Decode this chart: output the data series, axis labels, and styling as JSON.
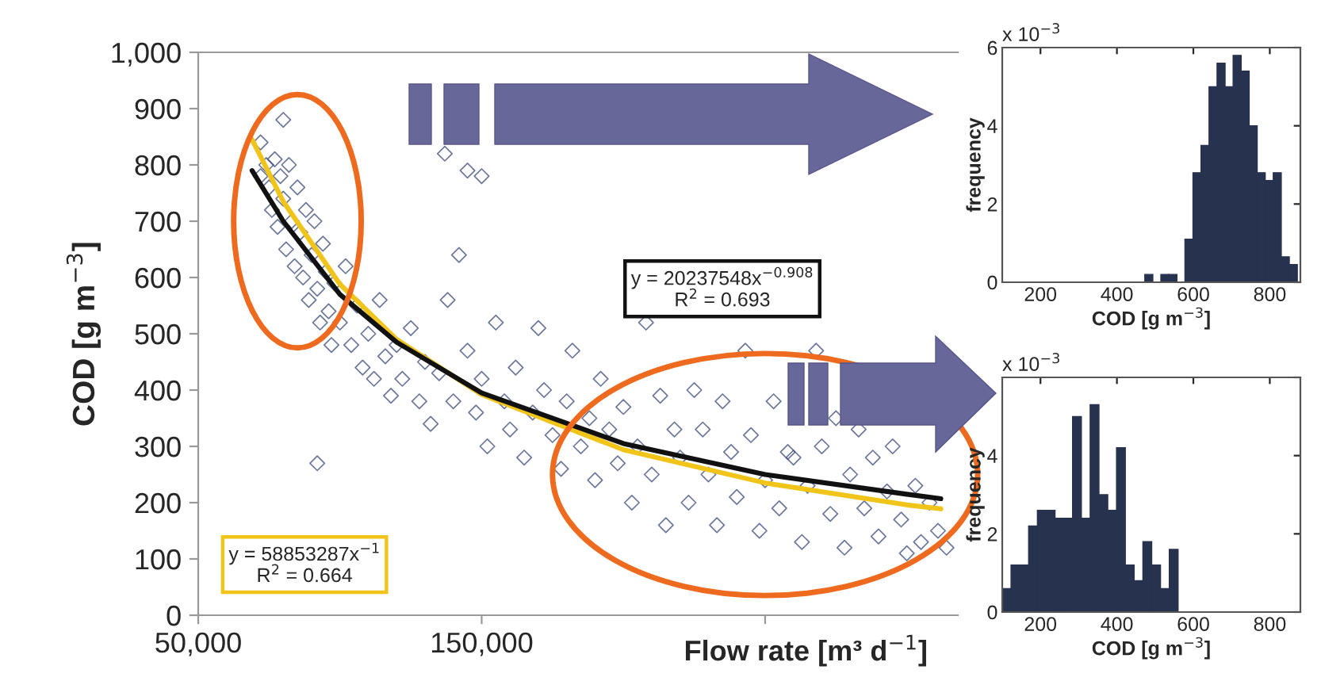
{
  "chart_data": [
    {
      "type": "scatter",
      "xlabel": "Flow rate [m³ d$^{−1}$]",
      "ylabel": "COD [g m$^{−3}$]",
      "xlim": [
        50000,
        318000
      ],
      "xticks": [
        {
          "value": 50000,
          "label": "50,000"
        },
        {
          "value": 150000,
          "label": "150,000"
        },
        {
          "value": 250000,
          "label": null
        }
      ],
      "ylim": [
        0,
        1000
      ],
      "yticks": [
        0,
        100,
        200,
        300,
        400,
        500,
        600,
        700,
        800,
        900,
        {
          "value": 1000,
          "label": "1,000"
        }
      ],
      "grid": false,
      "legend": false,
      "annotations": [
        "y = 58853287x$^{−1}$\nR$^{2}$ = 0.664",
        "y = 20237548x$^{−0.908}$\nR$^{2}$ = 0.693"
      ],
      "series": [
        {
          "type": "scatter",
          "color": "#3a4a78",
          "marker": "diamond",
          "x": [
            72000,
            74000,
            75000,
            76000,
            77000,
            78000,
            79000,
            80000,
            81000,
            82000,
            83000,
            84000,
            85000,
            86000,
            87000,
            88000,
            89000,
            90000,
            91000,
            92000,
            93000,
            94000,
            95000,
            96000,
            97000,
            98000,
            100000,
            102000,
            104000,
            106000,
            108000,
            110000,
            112000,
            114000,
            116000,
            118000,
            120000,
            122000,
            125000,
            128000,
            130000,
            132000,
            135000,
            138000,
            140000,
            142000,
            145000,
            148000,
            150000,
            152000,
            155000,
            158000,
            160000,
            162000,
            165000,
            168000,
            170000,
            172000,
            175000,
            178000,
            180000,
            182000,
            185000,
            188000,
            190000,
            192000,
            195000,
            198000,
            200000,
            203000,
            205000,
            208000,
            210000,
            213000,
            215000,
            218000,
            220000,
            223000,
            225000,
            228000,
            230000,
            233000,
            235000,
            238000,
            240000,
            243000,
            245000,
            248000,
            250000,
            253000,
            255000,
            258000,
            260000,
            263000,
            265000,
            268000,
            270000,
            273000,
            275000,
            278000,
            280000,
            283000,
            285000,
            288000,
            290000,
            293000,
            295000,
            298000,
            300000,
            303000,
            305000,
            308000,
            311000,
            314000,
            92000,
            72000,
            80000,
            137000,
            145000,
            150000
          ],
          "values": [
            780,
            800,
            760,
            720,
            810,
            690,
            780,
            740,
            650,
            800,
            700,
            620,
            760,
            680,
            600,
            720,
            560,
            640,
            700,
            580,
            520,
            660,
            610,
            540,
            480,
            590,
            520,
            620,
            480,
            550,
            440,
            500,
            420,
            560,
            460,
            390,
            480,
            420,
            510,
            380,
            450,
            340,
            430,
            560,
            380,
            640,
            470,
            360,
            420,
            300,
            520,
            380,
            330,
            440,
            280,
            360,
            510,
            400,
            320,
            260,
            380,
            470,
            300,
            350,
            240,
            420,
            330,
            270,
            370,
            200,
            300,
            520,
            250,
            390,
            160,
            330,
            280,
            200,
            400,
            330,
            250,
            160,
            380,
            290,
            210,
            470,
            320,
            150,
            240,
            380,
            190,
            290,
            280,
            130,
            230,
            470,
            300,
            180,
            350,
            120,
            250,
            330,
            190,
            280,
            140,
            220,
            300,
            170,
            110,
            230,
            130,
            200,
            150,
            120,
            270,
            840,
            880,
            820,
            790,
            780
          ]
        },
        {
          "type": "line",
          "color": "#f0c419",
          "x": [
            69000,
            80000,
            100000,
            120000,
            150000,
            200000,
            250000,
            300000,
            312000
          ],
          "values": [
            845,
            735,
            588,
            490,
            392,
            294,
            235,
            196,
            189
          ]
        },
        {
          "type": "line",
          "color": "#111111",
          "x": [
            69000,
            80000,
            100000,
            120000,
            150000,
            200000,
            250000,
            300000,
            312000
          ],
          "values": [
            790,
            700,
            570,
            485,
            395,
            305,
            250,
            215,
            207
          ]
        }
      ]
    },
    {
      "type": "histogram",
      "xlabel": "COD [g m$^{−3}$]",
      "ylabel": "frequency",
      "color": "#27324f",
      "annotations": [
        "x 10$^{−3}$"
      ],
      "xlim": [
        100,
        880
      ],
      "xticks": [
        200,
        400,
        600,
        800
      ],
      "ylim": [
        0,
        6
      ],
      "yticks": [
        0,
        2,
        4,
        6
      ],
      "grid": false,
      "bins": [
        473,
        494,
        515,
        536,
        557,
        578,
        599,
        620,
        641,
        662,
        683,
        704,
        725,
        746,
        767,
        788,
        809,
        830,
        851,
        872
      ],
      "values": [
        0.2,
        0,
        0.2,
        0.2,
        0,
        1.1,
        2.8,
        3.5,
        5.0,
        5.6,
        5.0,
        5.8,
        5.4,
        4.0,
        2.8,
        2.6,
        2.8,
        0.65,
        0.45
      ]
    },
    {
      "type": "histogram",
      "xlabel": "COD [g m$^{−3}$]",
      "ylabel": "frequency",
      "color": "#27324f",
      "annotations": [
        "x 10$^{−3}$"
      ],
      "xlim": [
        100,
        880
      ],
      "xticks": [
        200,
        400,
        600,
        800
      ],
      "ylim": [
        0,
        6
      ],
      "yticks": [
        0,
        2,
        4,
        {
          "value": 6,
          "label": null
        }
      ],
      "grid": false,
      "bins": [
        100,
        123,
        146,
        169,
        192,
        215,
        238,
        261,
        284,
        307,
        330,
        353,
        376,
        399,
        422,
        445,
        468,
        491,
        514,
        537,
        560
      ],
      "values": [
        0.6,
        1.2,
        1.2,
        2.2,
        2.6,
        2.6,
        2.4,
        2.4,
        5.0,
        2.4,
        5.3,
        3.0,
        2.6,
        4.2,
        1.2,
        0.8,
        1.8,
        1.2,
        0.6,
        1.6
      ]
    }
  ]
}
